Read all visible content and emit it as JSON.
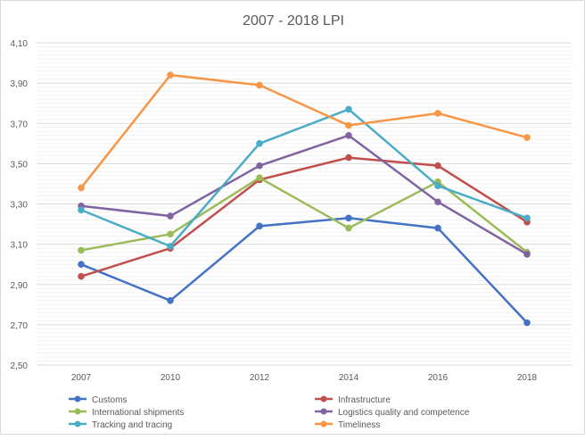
{
  "chart_data": {
    "type": "line",
    "title": "2007 - 2018 LPI",
    "xlabel": "",
    "ylabel": "",
    "categories": [
      "2007",
      "2010",
      "2012",
      "2014",
      "2016",
      "2018"
    ],
    "ylim": [
      2.5,
      4.1
    ],
    "yticks": [
      "2,50",
      "2,70",
      "2,90",
      "3,10",
      "3,30",
      "3,50",
      "3,70",
      "3,90",
      "4,10"
    ],
    "ytick_values": [
      2.5,
      2.7,
      2.9,
      3.1,
      3.3,
      3.5,
      3.7,
      3.9,
      4.1
    ],
    "grid": true,
    "legend_position": "bottom",
    "series": [
      {
        "name": "Customs",
        "color": "#4472c4",
        "values": [
          3.0,
          2.82,
          3.19,
          3.23,
          3.18,
          2.71
        ]
      },
      {
        "name": "Infrastructure",
        "color": "#c0504d",
        "values": [
          2.94,
          3.08,
          3.42,
          3.53,
          3.49,
          3.21
        ]
      },
      {
        "name": "International shipments",
        "color": "#9bbb59",
        "values": [
          3.07,
          3.15,
          3.43,
          3.18,
          3.41,
          3.06
        ]
      },
      {
        "name": "Logistics quality and competence",
        "color": "#8064a2",
        "values": [
          3.29,
          3.24,
          3.49,
          3.64,
          3.31,
          3.05
        ]
      },
      {
        "name": "Tracking and tracing",
        "color": "#4bacc6",
        "values": [
          3.27,
          3.09,
          3.6,
          3.77,
          3.39,
          3.23
        ]
      },
      {
        "name": "Timeliness",
        "color": "#f79646",
        "values": [
          3.38,
          3.94,
          3.89,
          3.69,
          3.75,
          3.63
        ]
      }
    ]
  }
}
